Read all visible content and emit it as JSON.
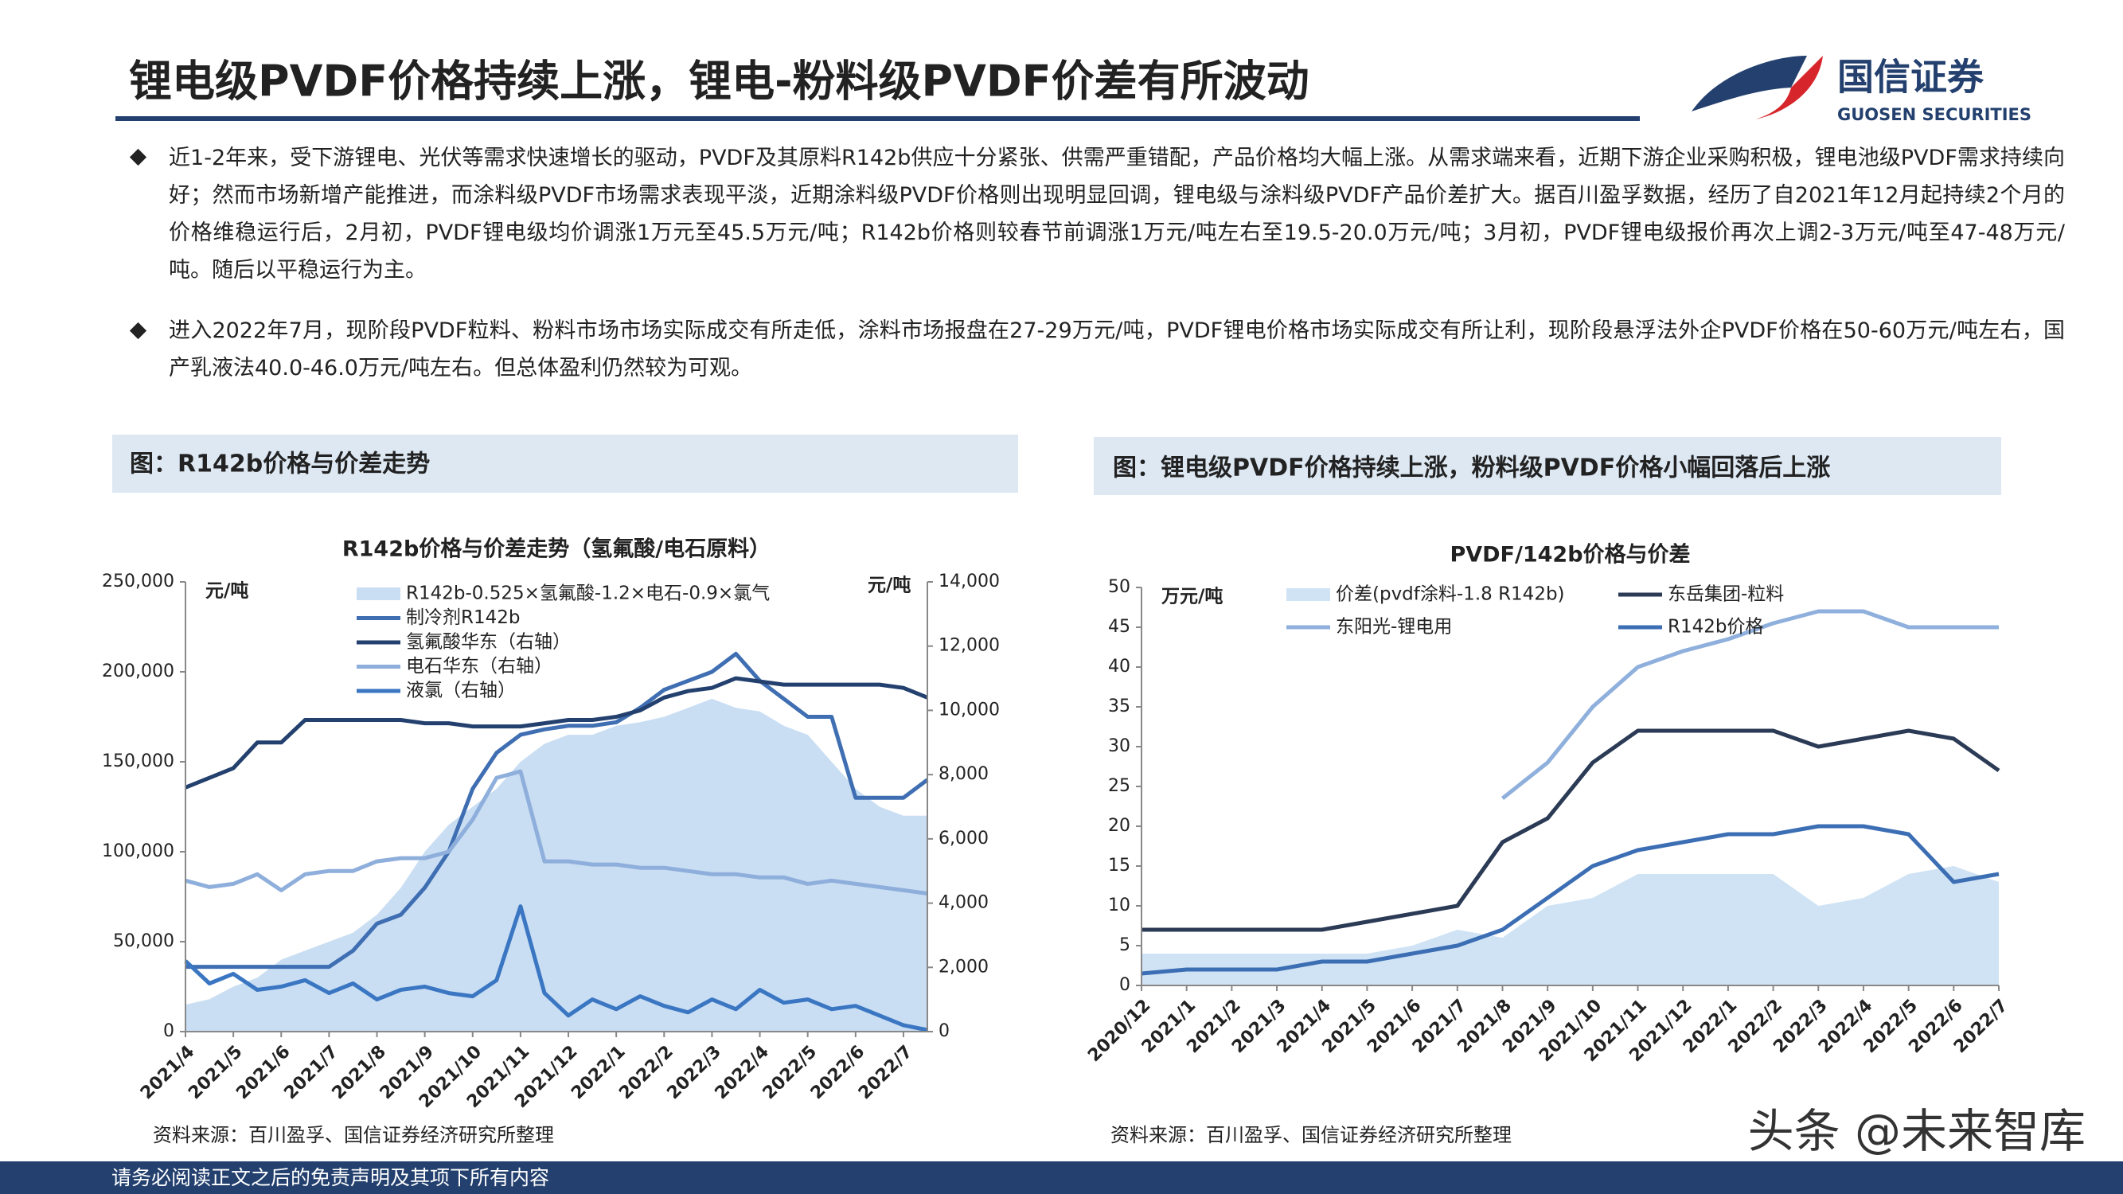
{
  "header": {
    "title": "锂电级PVDF价格持续上涨，锂电-粉料级PVDF价差有所波动",
    "logo": "国信证券",
    "logo_en": "GUOSEN SECURITIES"
  },
  "bullets": [
    "近1-2年来，受下游锂电、光伏等需求快速增长的驱动，PVDF及其原料R142b供应十分紧张、供需严重错配，产品价格均大幅上涨。从需求端来看，近期下游企业采购积极，锂电池级PVDF需求持续向好；然而市场新增产能推进，而涂料级PVDF市场需求表现平淡，近期涂料级PVDF价格则出现明显回调，锂电级与涂料级PVDF产品价差扩大。据百川盈孚数据，经历了自2021年12月起持续2个月的价格维稳运行后，2月初，PVDF锂电级均价调涨1万元至45.5万元/吨；R142b价格则较春节前调涨1万元/吨左右至19.5-20.0万元/吨；3月初，PVDF锂电级报价再次上调2-3万元/吨至47-48万元/吨。随后以平稳运行为主。",
    "进入2022年7月，现阶段PVDF粒料、粉料市场市场实际成交有所走低，涂料市场报盘在27-29万元/吨，PVDF锂电价格市场实际成交有所让利，现阶段悬浮法外企PVDF价格在50-60万元/吨左右，国产乳液法40.0-46.0万元/吨左右。但总体盈利仍然较为可观。"
  ],
  "figures": [
    {
      "caption": "图：R142b价格与价差走势",
      "source": "资料来源：百川盈孚、国信证券经济研究所整理"
    },
    {
      "caption": "图：锂电级PVDF价格持续上涨，粉料级PVDF价格小幅回落后上涨",
      "source": "资料来源：百川盈孚、国信证券经济研究所整理"
    }
  ],
  "chart_data": [
    {
      "type": "line",
      "title": "R142b价格与价差走势（氢氟酸/电石原料）",
      "ylabel": "元/吨",
      "y2label": "元/吨",
      "categories": [
        "2021/4",
        null,
        "2021/5",
        null,
        "2021/6",
        null,
        "2021/7",
        null,
        "2021/8",
        null,
        "2021/9",
        null,
        "2021/10",
        null,
        "2021/11",
        null,
        "2021/12",
        null,
        "2022/1",
        null,
        "2022/2",
        null,
        "2022/3",
        null,
        "2022/4",
        null,
        "2022/5",
        null,
        "2022/6",
        null,
        "2022/7",
        null
      ],
      "ylim": [
        0,
        250000
      ],
      "yticks": [
        0,
        {
          "value": 50000,
          "label": "50,000"
        },
        {
          "value": 100000,
          "label": "100,000"
        },
        {
          "value": 150000,
          "label": "150,000"
        },
        {
          "value": 200000,
          "label": "200,000"
        },
        {
          "value": 250000,
          "label": "250,000"
        }
      ],
      "y2lim": [
        0,
        14000
      ],
      "y2ticks": [
        0,
        {
          "value": 2000,
          "label": "2,000"
        },
        {
          "value": 4000,
          "label": "4,000"
        },
        {
          "value": 6000,
          "label": "6,000"
        },
        {
          "value": 8000,
          "label": "8,000"
        },
        {
          "value": 10000,
          "label": "10,000"
        },
        {
          "value": 12000,
          "label": "12,000"
        },
        {
          "value": 14000,
          "label": "14,000"
        }
      ],
      "legend": {
        "position": "upper left",
        "columns": 1
      },
      "series": [
        {
          "name": "R142b-0.525×氢氟酸-1.2×电石-0.9×氯气",
          "kind": "area",
          "color": "#c9def3",
          "values": [
            15000,
            18000,
            25000,
            30000,
            40000,
            45000,
            50000,
            55000,
            65000,
            80000,
            100000,
            115000,
            125000,
            135000,
            150000,
            160000,
            165000,
            165000,
            170000,
            172000,
            175000,
            180000,
            185000,
            180000,
            178000,
            170000,
            165000,
            150000,
            135000,
            125000,
            120000,
            120000
          ]
        },
        {
          "name": "制冷剂R142b",
          "kind": "line",
          "color": "#3f6fb2",
          "values": [
            36000,
            36000,
            36000,
            36000,
            36000,
            36000,
            36000,
            45000,
            60000,
            65000,
            80000,
            100000,
            135000,
            155000,
            165000,
            168000,
            170000,
            170000,
            172000,
            180000,
            190000,
            195000,
            200000,
            210000,
            195000,
            185000,
            175000,
            175000,
            130000,
            130000,
            130000,
            140000
          ]
        },
        {
          "name": "氢氟酸华东（右轴）",
          "kind": "line",
          "axis": "y2",
          "color": "#23406e",
          "values": [
            7600,
            7900,
            8200,
            9000,
            9000,
            9700,
            9700,
            9700,
            9700,
            9700,
            9600,
            9600,
            9500,
            9500,
            9500,
            9600,
            9700,
            9700,
            9800,
            10000,
            10400,
            10600,
            10700,
            11000,
            10900,
            10800,
            10800,
            10800,
            10800,
            10800,
            10700,
            10400
          ]
        },
        {
          "name": "电石华东（右轴）",
          "kind": "line",
          "axis": "y2",
          "color": "#8eaedb",
          "values": [
            4700,
            4500,
            4600,
            4900,
            4400,
            4900,
            5000,
            5000,
            5300,
            5400,
            5400,
            5600,
            6600,
            7900,
            8100,
            5300,
            5300,
            5200,
            5200,
            5100,
            5100,
            5000,
            4900,
            4900,
            4800,
            4800,
            4600,
            4700,
            4600,
            4500,
            4400,
            4300
          ]
        },
        {
          "name": "液氯（右轴）",
          "kind": "line",
          "axis": "y2",
          "color": "#3a76c2",
          "values": [
            2200,
            1500,
            1800,
            1300,
            1400,
            1600,
            1200,
            1500,
            1000,
            1300,
            1400,
            1200,
            1100,
            1600,
            3900,
            1200,
            500,
            1000,
            700,
            1100,
            800,
            600,
            1000,
            700,
            1300,
            900,
            1000,
            700,
            800,
            500,
            200,
            50
          ]
        }
      ]
    },
    {
      "type": "line",
      "title": "PVDF/142b价格与价差",
      "ylabel": "万元/吨",
      "categories": [
        "2020/12",
        "2021/1",
        "2021/2",
        "2021/3",
        "2021/4",
        "2021/5",
        "2021/6",
        "2021/7",
        "2021/8",
        "2021/9",
        "2021/10",
        "2021/11",
        "2021/12",
        "2022/1",
        "2022/2",
        "2022/3",
        "2022/4",
        "2022/5",
        "2022/6",
        "2022/7"
      ],
      "ylim": [
        0,
        50
      ],
      "yticks": [
        0,
        5,
        10,
        15,
        20,
        25,
        30,
        35,
        40,
        45,
        50
      ],
      "legend": {
        "position": "upper left",
        "columns": 2
      },
      "series": [
        {
          "name": "价差(pvdf涂料-1.8 R142b)",
          "kind": "area",
          "color": "#cfe3f5",
          "values": [
            4,
            4,
            4,
            4,
            4,
            4,
            5,
            7,
            6,
            10,
            11,
            14,
            14,
            14,
            14,
            10,
            11,
            14,
            15,
            13
          ]
        },
        {
          "name": "东岳集团-粒料",
          "kind": "line",
          "color": "#2b3a55",
          "values": [
            7,
            7,
            7,
            7,
            7,
            8,
            9,
            10,
            18,
            21,
            28,
            32,
            32,
            32,
            32,
            30,
            31,
            32,
            31,
            27
          ]
        },
        {
          "name": "东阳光-锂电用",
          "kind": "line",
          "color": "#8fb0dc",
          "values": [
            null,
            null,
            null,
            null,
            null,
            null,
            null,
            null,
            23.5,
            28,
            35,
            40,
            42,
            43.5,
            45.5,
            47,
            47,
            45,
            45,
            45
          ]
        },
        {
          "name": "R142b价格",
          "kind": "line",
          "color": "#3c6eb4",
          "values": [
            1.5,
            2,
            2,
            2,
            3,
            3,
            4,
            5,
            7,
            11,
            15,
            17,
            18,
            19,
            19,
            20,
            20,
            19,
            13,
            14
          ]
        }
      ]
    }
  ],
  "footer": "请务必阅读正文之后的免责声明及其项下所有内容",
  "watermark": "头条 @未来智库"
}
